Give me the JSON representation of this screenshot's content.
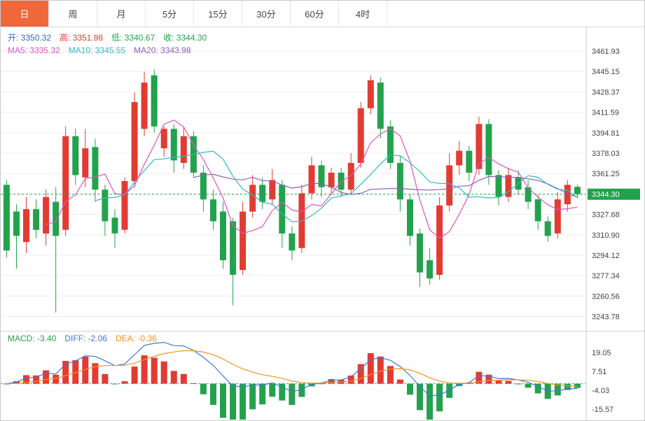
{
  "tabs": [
    {
      "label": "日",
      "active": true
    },
    {
      "label": "周",
      "active": false
    },
    {
      "label": "月",
      "active": false
    },
    {
      "label": "5分",
      "active": false
    },
    {
      "label": "15分",
      "active": false
    },
    {
      "label": "30分",
      "active": false
    },
    {
      "label": "60分",
      "active": false
    },
    {
      "label": "4时",
      "active": false
    }
  ],
  "info": {
    "open": "开: 3350.32",
    "high": "高: 3351.98",
    "low": "低: 3340.67",
    "close": "收: 3344.30",
    "ma5": "MA5: 3335.32",
    "ma10": "MA10: 3345.55",
    "ma20": "MA20: 3343.98"
  },
  "macd_info": {
    "macd": "MACD: -3.40",
    "diff": "DIFF: -2.06",
    "dea": "DEA: -0.36"
  },
  "colors": {
    "up": "#e23b32",
    "down": "#23a24d",
    "accent_tab": "#f0673a",
    "price_badge": "#23a24d",
    "grid": "#ededed",
    "axis_sep": "#cccccc",
    "ma5": "#e353c1",
    "ma10": "#33b8c4",
    "ma20": "#8f5fb5",
    "diff": "#3f77d6",
    "dea": "#f5921e",
    "open_text": "#3a62c6",
    "high_text": "#e23b32",
    "low_text": "#23a24d",
    "close_text": "#23a24d",
    "macd_text": "#23a24d"
  },
  "chart_data": {
    "type": "candlestick",
    "timeframe": "日",
    "ohlc_current": {
      "open": 3350.32,
      "high": 3351.98,
      "low": 3340.67,
      "close": 3344.3
    },
    "ma_values": {
      "MA5": 3335.32,
      "MA10": 3345.55,
      "MA20": 3343.98
    },
    "price_axis": {
      "ticks": [
        3461.93,
        3445.15,
        3428.37,
        3411.59,
        3394.81,
        3378.03,
        3361.25,
        3344.47,
        3327.68,
        3310.9,
        3294.12,
        3277.34,
        3260.56,
        3243.78
      ],
      "hidden_tick_index": 7,
      "ylim": [
        3232.0,
        3481.5
      ],
      "current_price": 3344.3
    },
    "candles": [
      [
        3352,
        3356,
        3292,
        3298
      ],
      [
        3330,
        3336,
        3283,
        3310
      ],
      [
        3305,
        3342,
        3296,
        3332
      ],
      [
        3332,
        3340,
        3308,
        3315
      ],
      [
        3312,
        3348,
        3302,
        3342
      ],
      [
        3338,
        3350,
        3247,
        3310
      ],
      [
        3315,
        3400,
        3310,
        3392
      ],
      [
        3392,
        3398,
        3352,
        3360
      ],
      [
        3358,
        3398,
        3350,
        3382
      ],
      [
        3383,
        3390,
        3338,
        3348
      ],
      [
        3348,
        3352,
        3310,
        3322
      ],
      [
        3325,
        3332,
        3300,
        3312
      ],
      [
        3315,
        3358,
        3312,
        3355
      ],
      [
        3355,
        3428,
        3350,
        3420
      ],
      [
        3398,
        3445,
        3392,
        3436
      ],
      [
        3442,
        3447,
        3395,
        3400
      ],
      [
        3382,
        3400,
        3375,
        3398
      ],
      [
        3398,
        3402,
        3362,
        3372
      ],
      [
        3370,
        3400,
        3365,
        3392
      ],
      [
        3392,
        3396,
        3358,
        3362
      ],
      [
        3362,
        3368,
        3330,
        3340
      ],
      [
        3340,
        3348,
        3315,
        3322
      ],
      [
        3330,
        3338,
        3283,
        3290
      ],
      [
        3322,
        3325,
        3253,
        3278
      ],
      [
        3282,
        3338,
        3278,
        3330
      ],
      [
        3330,
        3360,
        3325,
        3352
      ],
      [
        3352,
        3358,
        3332,
        3338
      ],
      [
        3340,
        3365,
        3336,
        3356
      ],
      [
        3352,
        3356,
        3300,
        3312
      ],
      [
        3312,
        3318,
        3290,
        3298
      ],
      [
        3300,
        3352,
        3296,
        3345
      ],
      [
        3345,
        3375,
        3340,
        3368
      ],
      [
        3368,
        3372,
        3342,
        3350
      ],
      [
        3350,
        3366,
        3344,
        3362
      ],
      [
        3362,
        3366,
        3342,
        3348
      ],
      [
        3348,
        3378,
        3344,
        3370
      ],
      [
        3370,
        3420,
        3366,
        3415
      ],
      [
        3415,
        3442,
        3410,
        3438
      ],
      [
        3436,
        3440,
        3390,
        3398
      ],
      [
        3400,
        3405,
        3365,
        3370
      ],
      [
        3370,
        3376,
        3330,
        3340
      ],
      [
        3340,
        3344,
        3302,
        3310
      ],
      [
        3312,
        3316,
        3268,
        3280
      ],
      [
        3290,
        3300,
        3270,
        3275
      ],
      [
        3278,
        3342,
        3274,
        3335
      ],
      [
        3335,
        3378,
        3330,
        3368
      ],
      [
        3368,
        3388,
        3360,
        3380
      ],
      [
        3380,
        3384,
        3355,
        3362
      ],
      [
        3365,
        3408,
        3360,
        3402
      ],
      [
        3402,
        3406,
        3352,
        3360
      ],
      [
        3360,
        3364,
        3335,
        3342
      ],
      [
        3342,
        3366,
        3338,
        3360
      ],
      [
        3358,
        3364,
        3344,
        3348
      ],
      [
        3350,
        3356,
        3332,
        3338
      ],
      [
        3340,
        3344,
        3315,
        3322
      ],
      [
        3322,
        3326,
        3305,
        3310
      ],
      [
        3312,
        3346,
        3308,
        3340
      ],
      [
        3336,
        3356,
        3330,
        3352
      ],
      [
        3350.32,
        3351.98,
        3340.67,
        3344.3
      ]
    ],
    "macd": {
      "MACD": -3.4,
      "DIFF": -2.06,
      "DEA": -0.36,
      "ticks": [
        19.05,
        7.51,
        -4.03,
        -15.57
      ],
      "ylim": [
        -22.8,
        31.9
      ]
    }
  }
}
